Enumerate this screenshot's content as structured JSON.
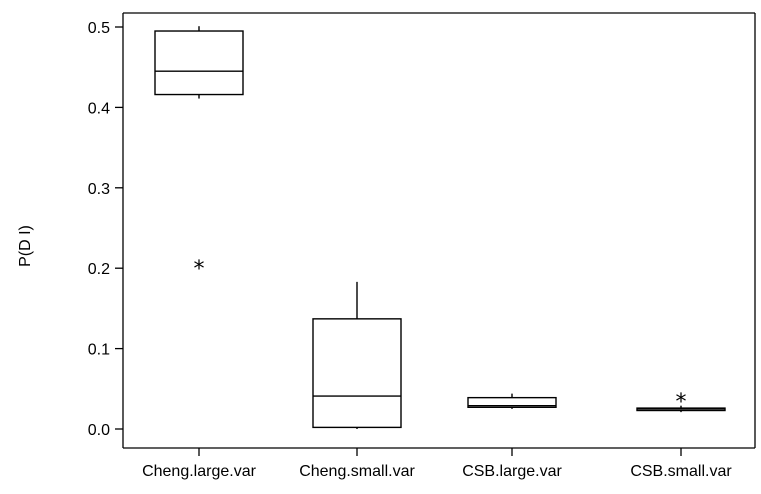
{
  "chart_data": {
    "type": "box",
    "xlabel": "",
    "ylabel": "P(D I)",
    "ylim": [
      -0.004,
      0.51
    ],
    "yticks": [
      "0.0",
      "0.1",
      "0.2",
      "0.3",
      "0.4",
      "0.5"
    ],
    "ytick_values": [
      0.0,
      0.1,
      0.2,
      0.3,
      0.4,
      0.5
    ],
    "categories": [
      "Cheng.large.var",
      "Cheng.small.var",
      "CSB.large.var",
      "CSB.small.var"
    ],
    "boxes": [
      {
        "whisker_low": 0.411,
        "q1": 0.416,
        "median": 0.445,
        "q3": 0.495,
        "whisker_high": 0.501,
        "outliers": [
          0.2
        ]
      },
      {
        "whisker_low": 0.0,
        "q1": 0.002,
        "median": 0.041,
        "q3": 0.137,
        "whisker_high": 0.183,
        "outliers": []
      },
      {
        "whisker_low": 0.025,
        "q1": 0.027,
        "median": 0.029,
        "q3": 0.039,
        "whisker_high": 0.044,
        "outliers": []
      },
      {
        "whisker_low": 0.021,
        "q1": 0.023,
        "median": 0.025,
        "q3": 0.026,
        "whisker_high": 0.029,
        "outliers": [
          0.035
        ]
      }
    ],
    "grid": false,
    "legend": "none"
  }
}
